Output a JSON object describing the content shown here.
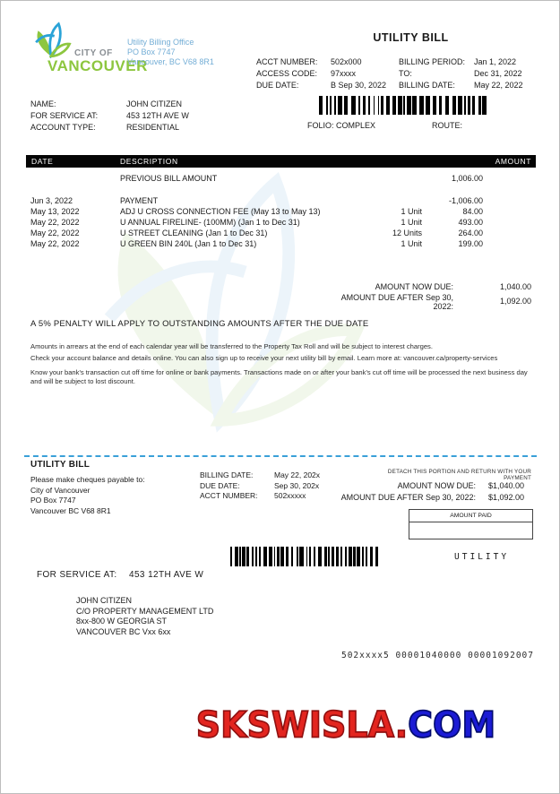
{
  "header": {
    "logo": {
      "city_of": "CITY OF",
      "vancouver": "VANCOUVER"
    },
    "office_lines": [
      "Utility Billing Office",
      "PO Box 7747",
      "Vancouver, BC V68 8R1"
    ],
    "title": "UTILITY BILL",
    "account_fields": [
      {
        "label": "ACCT NUMBER:",
        "value": "502x000"
      },
      {
        "label": "ACCESS CODE:",
        "value": "97xxxx"
      },
      {
        "label": "DUE DATE:",
        "value": "B Sep 30, 2022"
      }
    ],
    "billing_fields": [
      {
        "label": "BILLING PERIOD:",
        "value": "Jan 1, 2022"
      },
      {
        "label": "TO:",
        "value": "Dec 31, 2022"
      },
      {
        "label": "BILLING DATE:",
        "value": "May 22, 2022"
      }
    ]
  },
  "customer": {
    "fields": [
      {
        "label": "NAME:",
        "value": "JOHN CITIZEN"
      },
      {
        "label": "FOR SERVICE AT:",
        "value": "453 12TH AVE W"
      },
      {
        "label": "ACCOUNT TYPE:",
        "value": "RESIDENTIAL"
      }
    ],
    "folio_label": "FOLIO:  COMPLEX",
    "route_label": "ROUTE:"
  },
  "table": {
    "headers": {
      "date": "DATE",
      "description": "DESCRIPTION",
      "amount": "AMOUNT"
    },
    "previous_row": {
      "description": "PREVIOUS BILL AMOUNT",
      "amount": "1,006.00"
    },
    "rows": [
      {
        "date": "Jun 3, 2022",
        "description": "PAYMENT",
        "units": "",
        "amount": "-1,006.00"
      },
      {
        "date": "May 13, 2022",
        "description": "ADJ U CROSS CONNECTION FEE (May 13 to May 13)",
        "units": "1 Unit",
        "amount": "84.00"
      },
      {
        "date": "May 22, 2022",
        "description": "U ANNUAL FIRELINE- (100MM) (Jan 1 to Dec 31)",
        "units": "1 Unit",
        "amount": "493.00"
      },
      {
        "date": "May 22, 2022",
        "description": "U STREET CLEANING (Jan 1 to Dec 31)",
        "units": "12 Units",
        "amount": "264.00"
      },
      {
        "date": "May 22, 2022",
        "description": "U GREEN BIN 240L (Jan 1 to Dec 31)",
        "units": "1 Unit",
        "amount": "199.00"
      }
    ],
    "totals": [
      {
        "label": "AMOUNT NOW DUE:",
        "amount": "1,040.00"
      },
      {
        "label": "AMOUNT DUE AFTER Sep 30, 2022:",
        "amount": "1,092.00"
      }
    ]
  },
  "notices": {
    "penalty": "A 5% PENALTY WILL APPLY TO OUTSTANDING AMOUNTS AFTER THE DUE DATE",
    "fine_print": [
      "Amounts in arrears at the end of each calendar year will be transferred to the Property Tax Roll and will be subject to interest charges.",
      "Check your account balance and details online. You can also sign up to receive your next utility bill by email. Learn more at: vancouver.ca/property-services",
      "Know your bank's transaction cut off time for online or bank payments. Transactions made on or after your bank's cut off time will be processed the next business day and will be subject to lost discount."
    ]
  },
  "stub": {
    "title": "UTILITY BILL",
    "payable_lines": [
      "Please make cheques payable to:",
      "City of Vancouver",
      "PO Box 7747",
      "Vancouver BC V68 8R1"
    ],
    "fields": [
      {
        "label": "BILLING DATE:",
        "value": "May 22, 202x"
      },
      {
        "label": "DUE DATE:",
        "value": "Sep 30, 202x"
      },
      {
        "label": "ACCT NUMBER:",
        "value": "502xxxxx"
      }
    ],
    "detach_note": "DETACH THIS PORTION AND RETURN WITH YOUR PAYMENT",
    "amounts": [
      {
        "label": "AMOUNT NOW DUE:",
        "value": "$1,040.00"
      },
      {
        "label": "AMOUNT DUE AFTER Sep 30, 2022:",
        "value": "$1,092.00"
      }
    ],
    "amount_paid_label": "AMOUNT PAID",
    "utility_tag": "UTILITY",
    "service_label": "FOR SERVICE AT:",
    "service_value": "453 12TH AVE W",
    "mailing_address": [
      "JOHN CITIZEN",
      "C/O PROPERTY MANAGEMENT LTD",
      "8xx-800 W GEORGIA ST",
      "VANCOUVER BC Vxx 6xx"
    ],
    "ocr_line": "502xxxx5 00001040000 00001092007"
  },
  "watermark": {
    "red": "SKSWISLA.",
    "blue": "COM"
  },
  "colors": {
    "logo_green": "#8dc63f",
    "logo_blue": "#2aa3d7",
    "office_blue": "#74aed6",
    "dash_blue": "#3aa0d8"
  }
}
